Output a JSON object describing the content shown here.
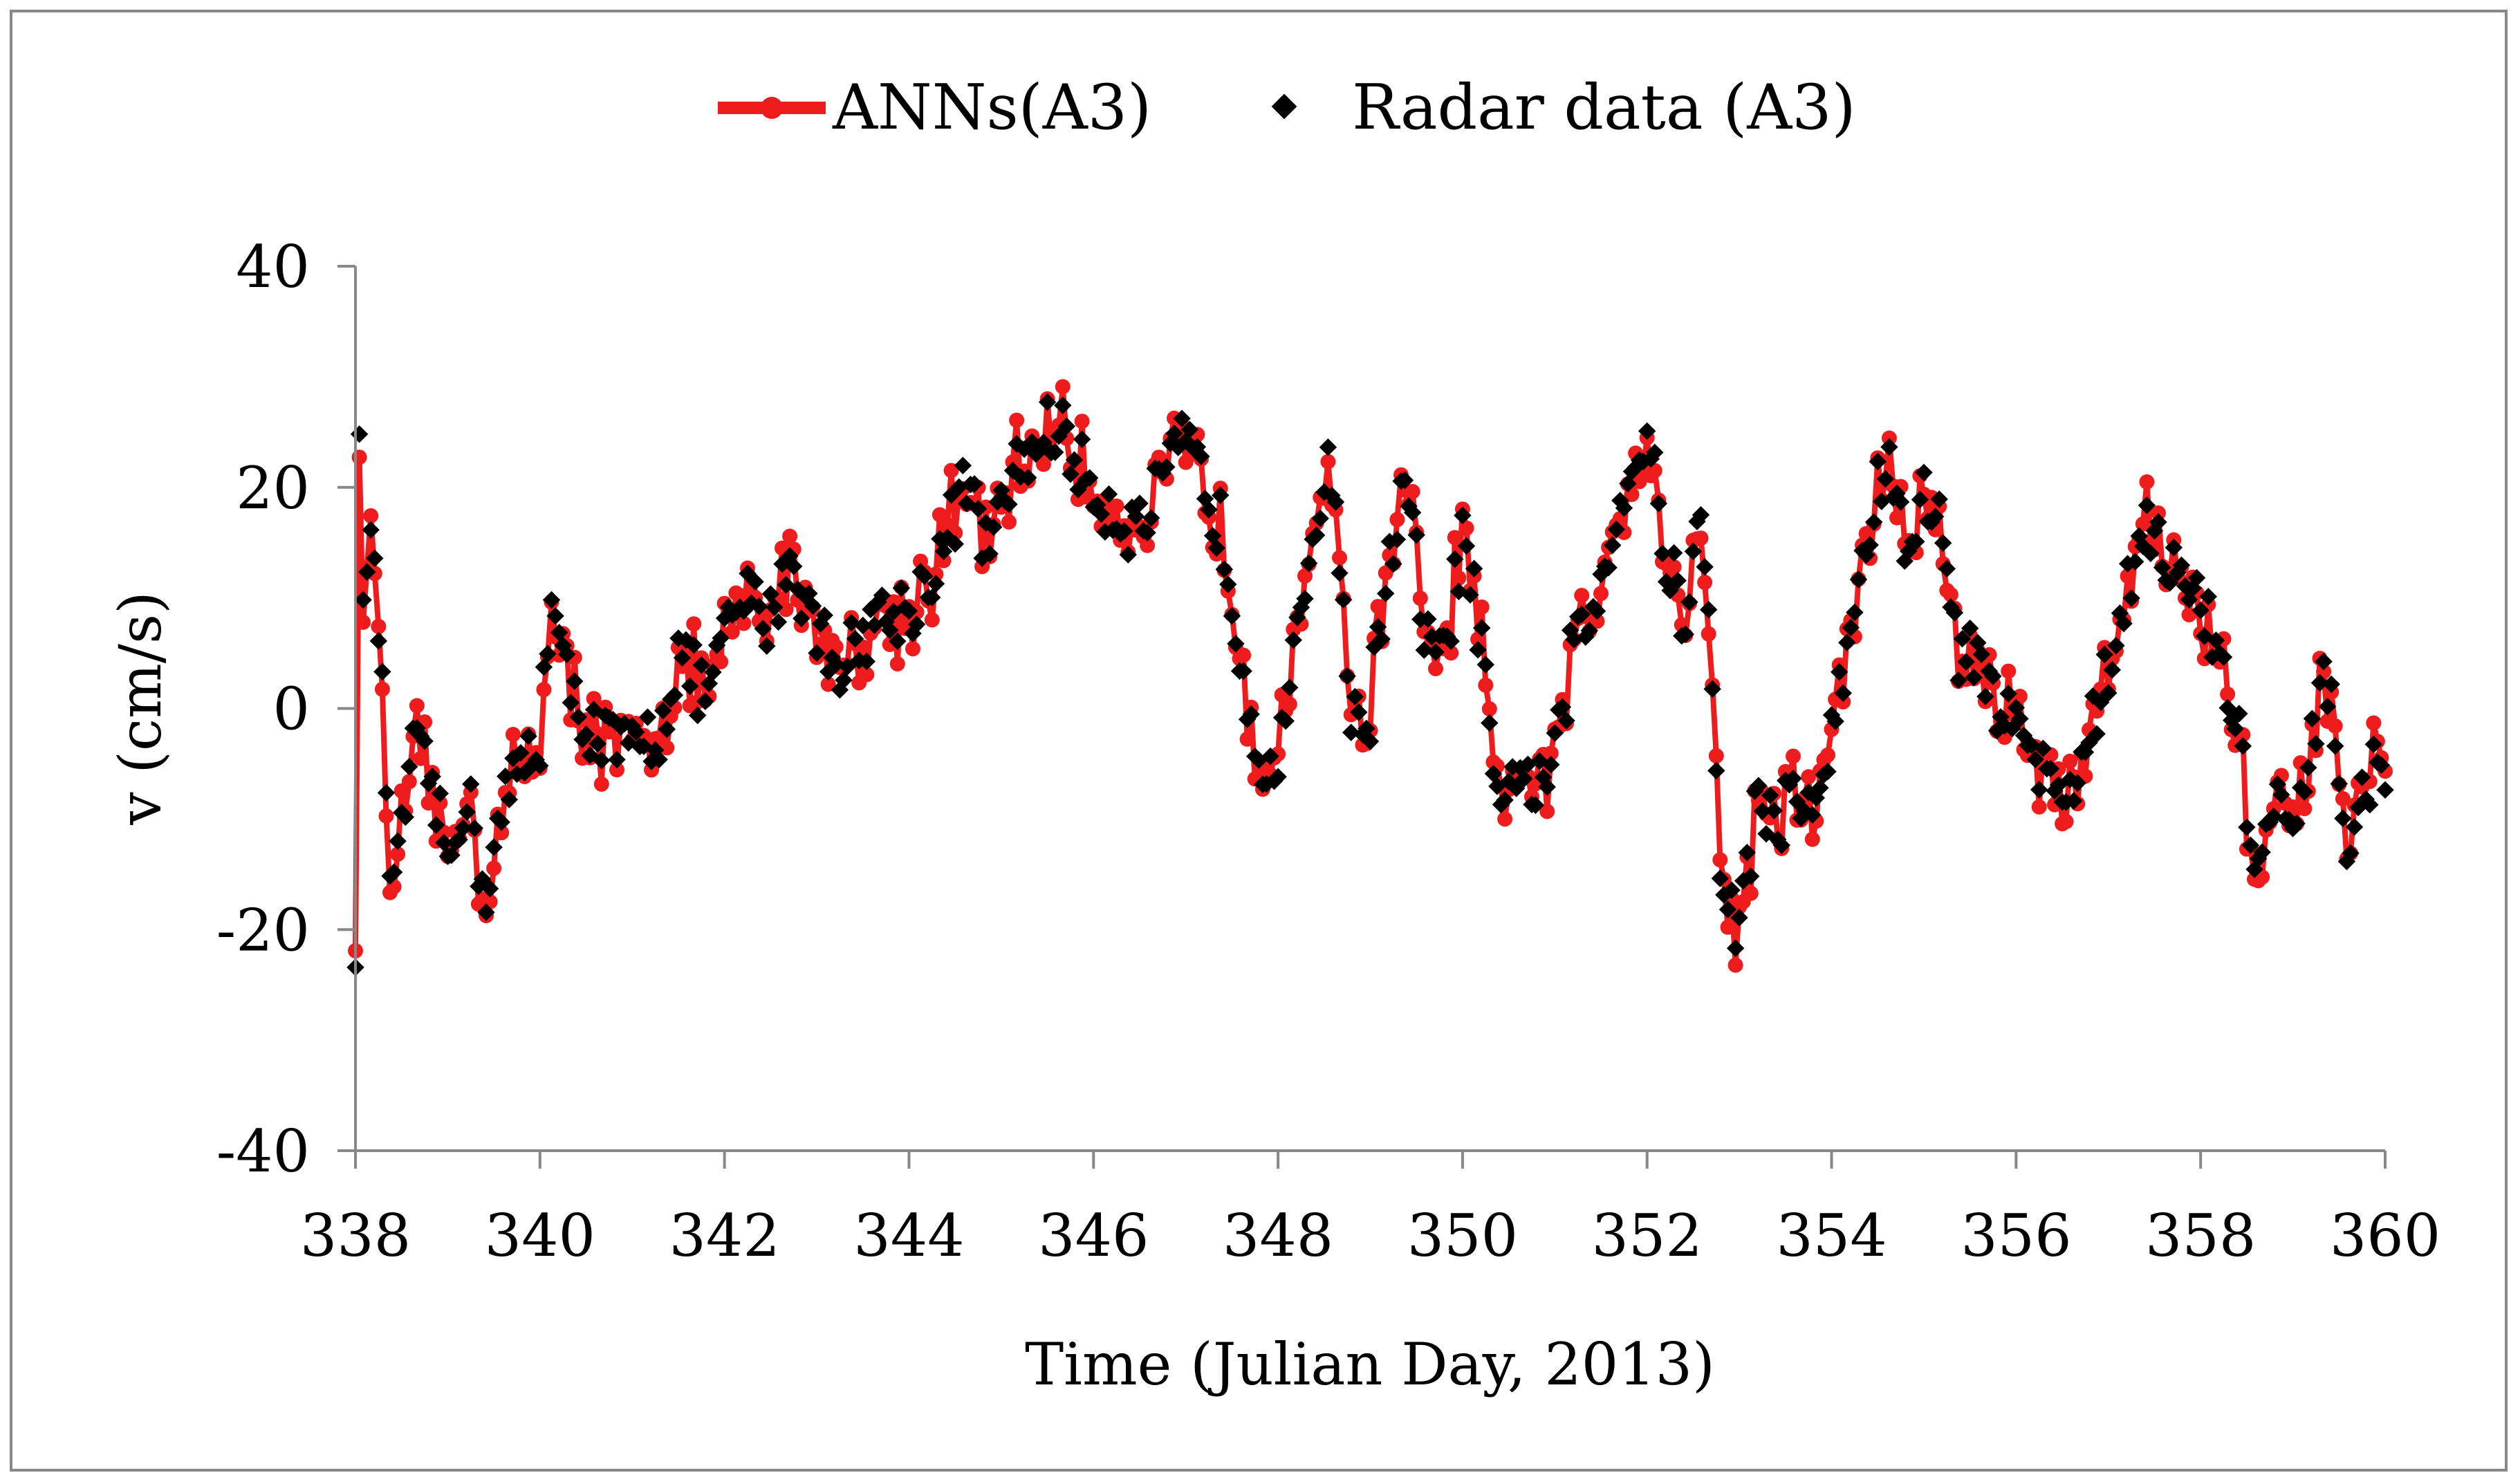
{
  "chart_data": {
    "type": "line",
    "title": "",
    "xlabel": "Time (Julian Day, 2013)",
    "ylabel": "v (cm/s)",
    "xlim": [
      338,
      360
    ],
    "ylim": [
      -40,
      40
    ],
    "x_ticks": [
      338,
      340,
      342,
      344,
      346,
      348,
      350,
      352,
      354,
      356,
      358,
      360
    ],
    "y_ticks": [
      -40,
      -20,
      0,
      20,
      40
    ],
    "x_tick_labels": [
      "338",
      "340",
      "342",
      "344",
      "346",
      "348",
      "350",
      "352",
      "354",
      "356",
      "358",
      "360"
    ],
    "y_tick_labels": [
      "-40",
      "-20",
      "0",
      "20",
      "40"
    ],
    "legend": [
      "ANNs(A3)",
      "Radar data (A3)"
    ],
    "legend_position": "top-center",
    "colors": {
      "anns": "#ee1c1c",
      "radar": "#000000",
      "axis": "#888888"
    },
    "keypoints": [
      [
        338.0,
        -21
      ],
      [
        338.02,
        27
      ],
      [
        338.1,
        9
      ],
      [
        338.2,
        16
      ],
      [
        338.3,
        -1
      ],
      [
        338.4,
        -18
      ],
      [
        338.5,
        -12
      ],
      [
        338.6,
        -4
      ],
      [
        338.8,
        -6
      ],
      [
        339.0,
        -14
      ],
      [
        339.2,
        -7
      ],
      [
        339.4,
        -17
      ],
      [
        339.6,
        -9
      ],
      [
        339.8,
        -5
      ],
      [
        340.0,
        -3
      ],
      [
        340.1,
        10
      ],
      [
        340.3,
        2
      ],
      [
        340.5,
        -1
      ],
      [
        340.7,
        -3
      ],
      [
        341.0,
        -4
      ],
      [
        341.3,
        -2
      ],
      [
        341.5,
        5
      ],
      [
        341.8,
        1
      ],
      [
        342.0,
        6
      ],
      [
        342.2,
        10
      ],
      [
        342.5,
        8
      ],
      [
        342.7,
        14
      ],
      [
        343.0,
        7
      ],
      [
        343.3,
        4
      ],
      [
        343.6,
        8
      ],
      [
        344.0,
        9
      ],
      [
        344.3,
        13
      ],
      [
        344.6,
        20
      ],
      [
        344.9,
        14
      ],
      [
        345.1,
        21
      ],
      [
        345.4,
        24
      ],
      [
        345.6,
        26
      ],
      [
        345.9,
        21
      ],
      [
        346.2,
        18
      ],
      [
        346.5,
        16
      ],
      [
        346.8,
        21
      ],
      [
        347.0,
        24
      ],
      [
        347.2,
        20
      ],
      [
        347.4,
        16
      ],
      [
        347.6,
        5
      ],
      [
        347.8,
        -4
      ],
      [
        348.0,
        -5
      ],
      [
        348.2,
        5
      ],
      [
        348.4,
        18
      ],
      [
        348.6,
        22
      ],
      [
        348.8,
        -2
      ],
      [
        349.0,
        0
      ],
      [
        349.2,
        14
      ],
      [
        349.4,
        20
      ],
      [
        349.6,
        6
      ],
      [
        349.8,
        4
      ],
      [
        350.0,
        16
      ],
      [
        350.2,
        6
      ],
      [
        350.4,
        -12
      ],
      [
        350.6,
        -4
      ],
      [
        350.8,
        -8
      ],
      [
        351.0,
        -5
      ],
      [
        351.2,
        6
      ],
      [
        351.4,
        8
      ],
      [
        351.6,
        16
      ],
      [
        351.8,
        21
      ],
      [
        352.0,
        25
      ],
      [
        352.2,
        14
      ],
      [
        352.4,
        8
      ],
      [
        352.6,
        18
      ],
      [
        352.8,
        -15
      ],
      [
        353.0,
        -20
      ],
      [
        353.2,
        -8
      ],
      [
        353.4,
        -10
      ],
      [
        353.6,
        -8
      ],
      [
        353.8,
        -9
      ],
      [
        354.0,
        -3
      ],
      [
        354.2,
        7
      ],
      [
        354.4,
        16
      ],
      [
        354.6,
        23
      ],
      [
        354.8,
        14
      ],
      [
        355.0,
        19
      ],
      [
        355.2,
        16
      ],
      [
        355.4,
        4
      ],
      [
        355.6,
        6
      ],
      [
        355.8,
        -2
      ],
      [
        356.0,
        2
      ],
      [
        356.2,
        -4
      ],
      [
        356.4,
        -8
      ],
      [
        356.6,
        -7
      ],
      [
        356.8,
        -2
      ],
      [
        357.0,
        3
      ],
      [
        357.2,
        11
      ],
      [
        357.4,
        18
      ],
      [
        357.6,
        14
      ],
      [
        357.8,
        11
      ],
      [
        358.0,
        9
      ],
      [
        358.2,
        5
      ],
      [
        358.4,
        -2
      ],
      [
        358.6,
        -15
      ],
      [
        358.8,
        -9
      ],
      [
        359.0,
        -12
      ],
      [
        359.2,
        -4
      ],
      [
        359.4,
        4
      ],
      [
        359.6,
        -15
      ],
      [
        359.8,
        -6
      ],
      [
        360.0,
        -5
      ]
    ]
  }
}
